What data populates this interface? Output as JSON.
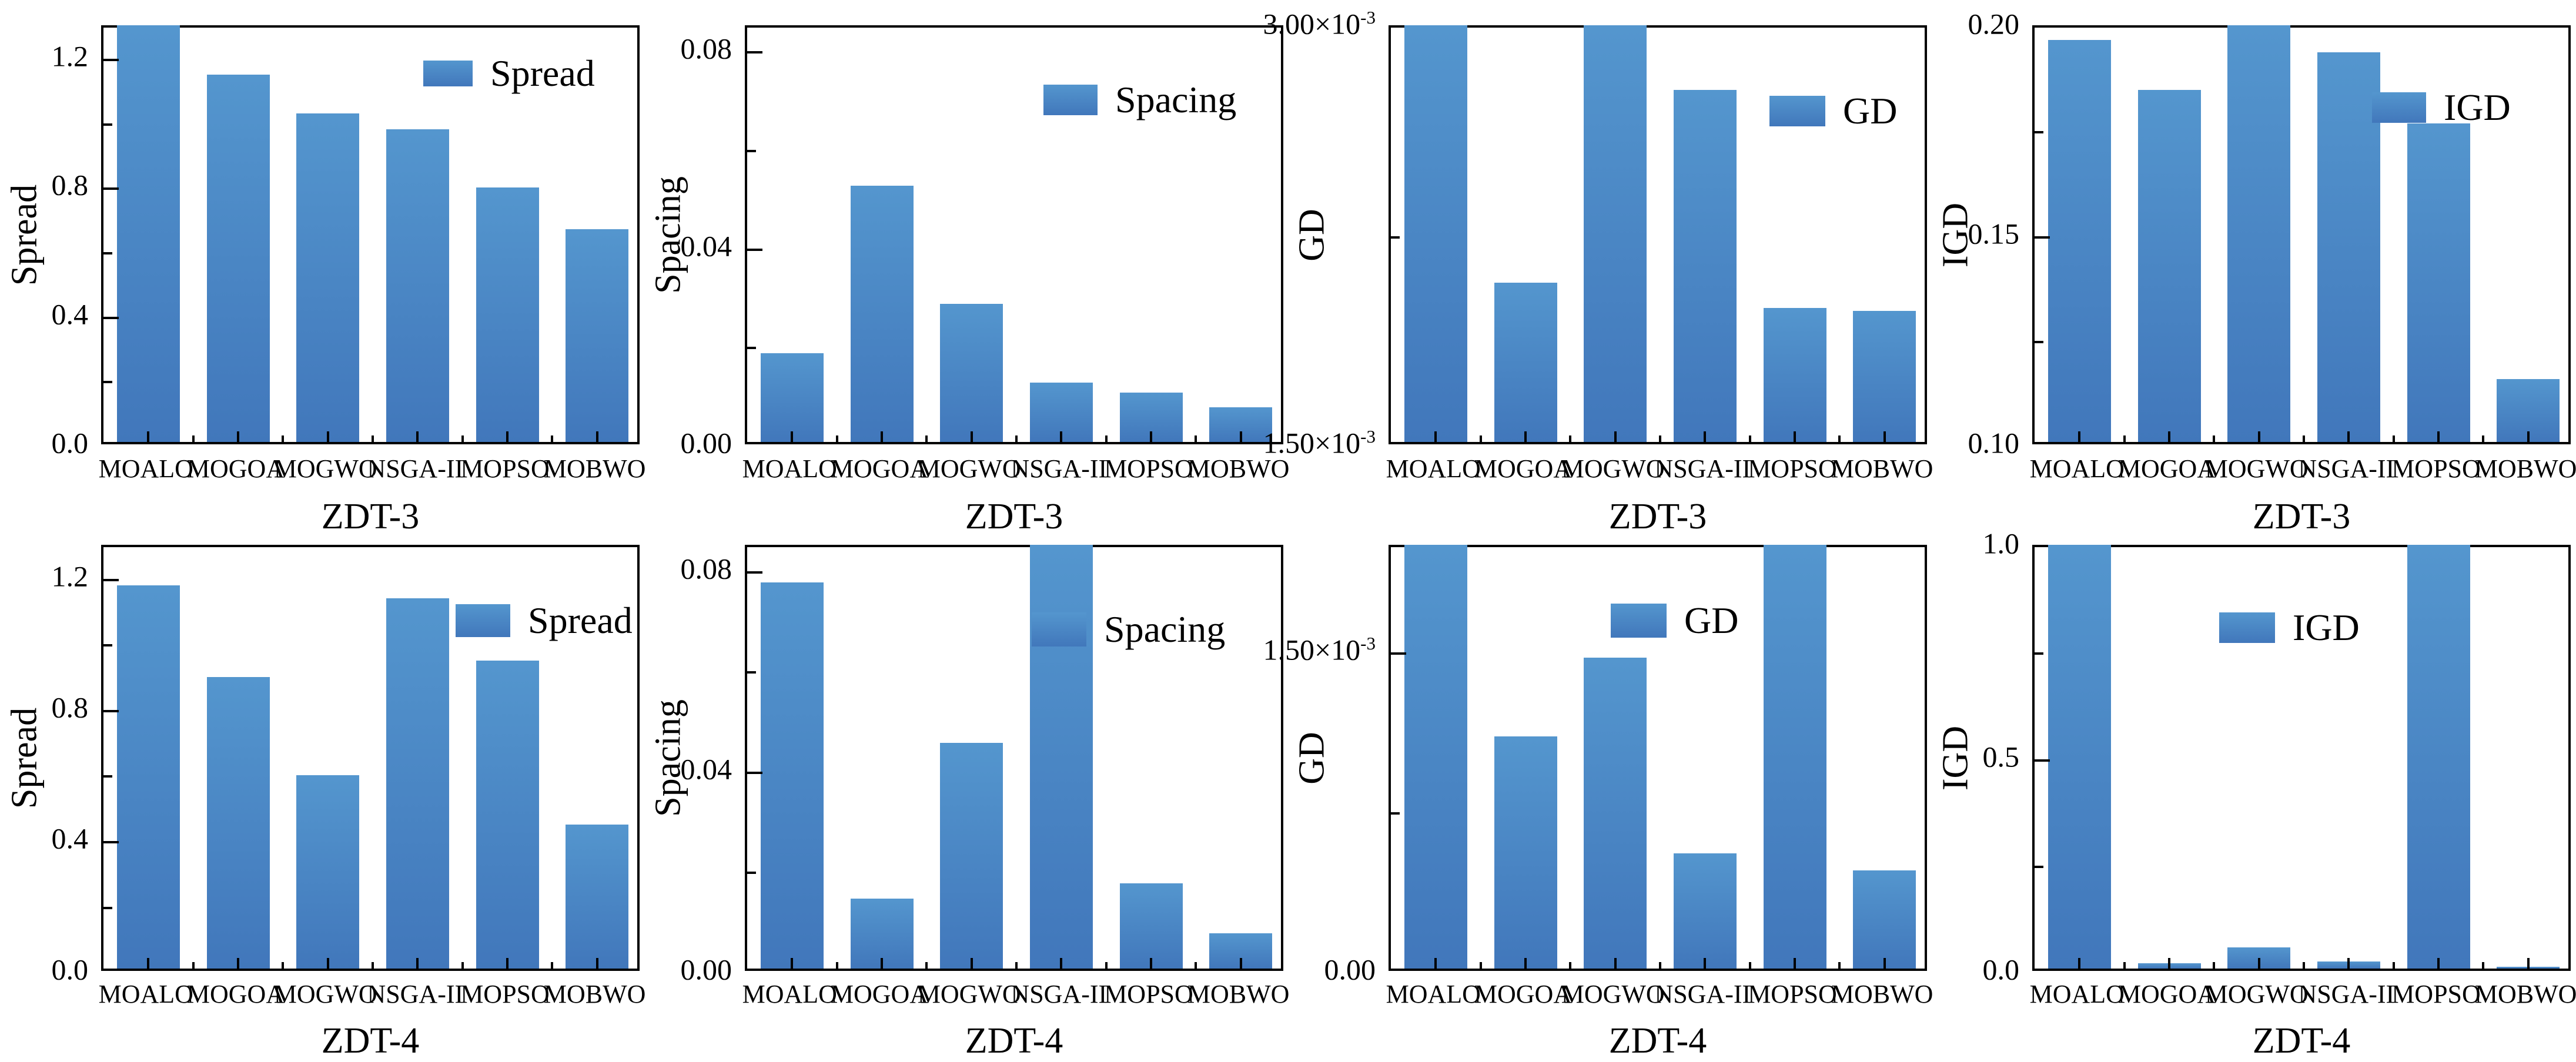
{
  "figure": {
    "description": "2x4 grid of bar charts comparing multi-objective algorithms on ZDT-3 and ZDT-4 benchmarks",
    "background": "#ffffff"
  },
  "colors": {
    "bar_top": "#5496ce",
    "bar_bottom": "#4177bb",
    "frame": "#000000",
    "text": "#000000"
  },
  "categories": [
    "MOALO",
    "MOGOA",
    "MOGWO",
    "NSGA-II",
    "MOPSO",
    "MOBWO"
  ],
  "chart_data": [
    {
      "type": "bar",
      "title": "",
      "xlabel": "ZDT-3",
      "ylabel": "Spread",
      "legend": "Spread",
      "categories": [
        "MOALO",
        "MOGOA",
        "MOGWO",
        "NSGA-II",
        "MOPSO",
        "MOBWO"
      ],
      "values": [
        1.3,
        1.14,
        1.02,
        0.97,
        0.79,
        0.66
      ],
      "clipped_at_top": [
        true,
        false,
        false,
        false,
        false,
        false
      ],
      "ylim": [
        0,
        1.3
      ],
      "yticks_major": [
        {
          "v": 0.0,
          "label": "0.0"
        },
        {
          "v": 0.4,
          "label": "0.4"
        },
        {
          "v": 0.8,
          "label": "0.8"
        },
        {
          "v": 1.2,
          "label": "1.2"
        }
      ],
      "yticks_minor": [
        0.2,
        0.6,
        1.0
      ],
      "grid": false,
      "legend_position": "top-right"
    },
    {
      "type": "bar",
      "title": "",
      "xlabel": "ZDT-3",
      "ylabel": "Spacing",
      "legend": "Spacing",
      "categories": [
        "MOALO",
        "MOGOA",
        "MOGWO",
        "NSGA-II",
        "MOPSO",
        "MOBWO"
      ],
      "values": [
        0.018,
        0.052,
        0.028,
        0.012,
        0.01,
        0.007
      ],
      "clipped_at_top": [
        false,
        false,
        false,
        false,
        false,
        false
      ],
      "ylim": [
        0,
        0.085
      ],
      "yticks_major": [
        {
          "v": 0.0,
          "label": "0.00"
        },
        {
          "v": 0.04,
          "label": "0.04"
        },
        {
          "v": 0.08,
          "label": "0.08"
        }
      ],
      "yticks_minor": [
        0.02,
        0.06
      ],
      "grid": false,
      "legend_position": "top-right"
    },
    {
      "type": "bar",
      "title": "",
      "xlabel": "ZDT-3",
      "ylabel": "GD",
      "legend": "GD",
      "categories": [
        "MOALO",
        "MOGOA",
        "MOGWO",
        "NSGA-II",
        "MOPSO",
        "MOBWO"
      ],
      "values": [
        0.003,
        0.00207,
        0.003,
        0.00276,
        0.00198,
        0.00197
      ],
      "clipped_at_top": [
        true,
        false,
        true,
        false,
        false,
        false
      ],
      "ylim": [
        0.0015,
        0.003
      ],
      "yticks_major": [
        {
          "v": 0.0015,
          "label": "1.50×10^-3"
        },
        {
          "v": 0.003,
          "label": "3.00×10^-3"
        }
      ],
      "yticks_minor": [
        0.00225
      ],
      "grid": false,
      "legend_position": "top-right"
    },
    {
      "type": "bar",
      "title": "",
      "xlabel": "ZDT-3",
      "ylabel": "IGD",
      "legend": "IGD",
      "categories": [
        "MOALO",
        "MOGOA",
        "MOGWO",
        "NSGA-II",
        "MOPSO",
        "MOBWO"
      ],
      "values": [
        0.196,
        0.184,
        0.2,
        0.193,
        0.176,
        0.115
      ],
      "clipped_at_top": [
        false,
        false,
        true,
        false,
        false,
        false
      ],
      "ylim": [
        0.1,
        0.2
      ],
      "yticks_major": [
        {
          "v": 0.1,
          "label": "0.10"
        },
        {
          "v": 0.15,
          "label": "0.15"
        },
        {
          "v": 0.2,
          "label": "0.20"
        }
      ],
      "yticks_minor": [
        0.125,
        0.175
      ],
      "grid": false,
      "legend_position": "top-right"
    },
    {
      "type": "bar",
      "title": "",
      "xlabel": "ZDT-4",
      "ylabel": "Spread",
      "legend": "Spread",
      "categories": [
        "MOALO",
        "MOGOA",
        "MOGWO",
        "NSGA-II",
        "MOPSO",
        "MOBWO"
      ],
      "values": [
        1.17,
        0.89,
        0.59,
        1.13,
        0.94,
        0.44
      ],
      "clipped_at_top": [
        false,
        false,
        false,
        false,
        false,
        false
      ],
      "ylim": [
        0,
        1.3
      ],
      "yticks_major": [
        {
          "v": 0.0,
          "label": "0.0"
        },
        {
          "v": 0.4,
          "label": "0.4"
        },
        {
          "v": 0.8,
          "label": "0.8"
        },
        {
          "v": 1.2,
          "label": "1.2"
        }
      ],
      "yticks_minor": [
        0.2,
        0.6,
        1.0
      ],
      "grid": false,
      "legend_position": "top-right"
    },
    {
      "type": "bar",
      "title": "",
      "xlabel": "ZDT-4",
      "ylabel": "Spacing",
      "legend": "Spacing",
      "categories": [
        "MOALO",
        "MOGOA",
        "MOGWO",
        "NSGA-II",
        "MOPSO",
        "MOBWO"
      ],
      "values": [
        0.077,
        0.014,
        0.045,
        0.085,
        0.017,
        0.007
      ],
      "clipped_at_top": [
        false,
        false,
        false,
        true,
        false,
        false
      ],
      "ylim": [
        0,
        0.085
      ],
      "yticks_major": [
        {
          "v": 0.0,
          "label": "0.00"
        },
        {
          "v": 0.04,
          "label": "0.04"
        },
        {
          "v": 0.08,
          "label": "0.08"
        }
      ],
      "yticks_minor": [
        0.02,
        0.06
      ],
      "grid": false,
      "legend_position": "top-right"
    },
    {
      "type": "bar",
      "title": "",
      "xlabel": "ZDT-4",
      "ylabel": "GD",
      "legend": "GD",
      "categories": [
        "MOALO",
        "MOGOA",
        "MOGWO",
        "NSGA-II",
        "MOPSO",
        "MOBWO"
      ],
      "values": [
        0.002,
        0.00109,
        0.00146,
        0.00054,
        0.002,
        0.00046
      ],
      "clipped_at_top": [
        true,
        false,
        false,
        false,
        true,
        false
      ],
      "ylim": [
        0,
        0.002
      ],
      "yticks_major": [
        {
          "v": 0.0,
          "label": "0.00"
        },
        {
          "v": 0.0015,
          "label": "1.50×10^-3"
        }
      ],
      "yticks_minor": [
        0.00075
      ],
      "grid": false,
      "legend_position": "top-center"
    },
    {
      "type": "bar",
      "title": "",
      "xlabel": "ZDT-4",
      "ylabel": "IGD",
      "legend": "IGD",
      "categories": [
        "MOALO",
        "MOGOA",
        "MOGWO",
        "NSGA-II",
        "MOPSO",
        "MOBWO"
      ],
      "values": [
        1.0,
        0.013,
        0.05,
        0.016,
        1.0,
        0.004
      ],
      "clipped_at_top": [
        true,
        false,
        false,
        false,
        true,
        false
      ],
      "ylim": [
        0,
        1.0
      ],
      "yticks_major": [
        {
          "v": 0.0,
          "label": "0.0"
        },
        {
          "v": 0.5,
          "label": "0.5"
        },
        {
          "v": 1.0,
          "label": "1.0"
        }
      ],
      "yticks_minor": [
        0.25,
        0.75
      ],
      "grid": false,
      "legend_position": "top-center"
    }
  ]
}
